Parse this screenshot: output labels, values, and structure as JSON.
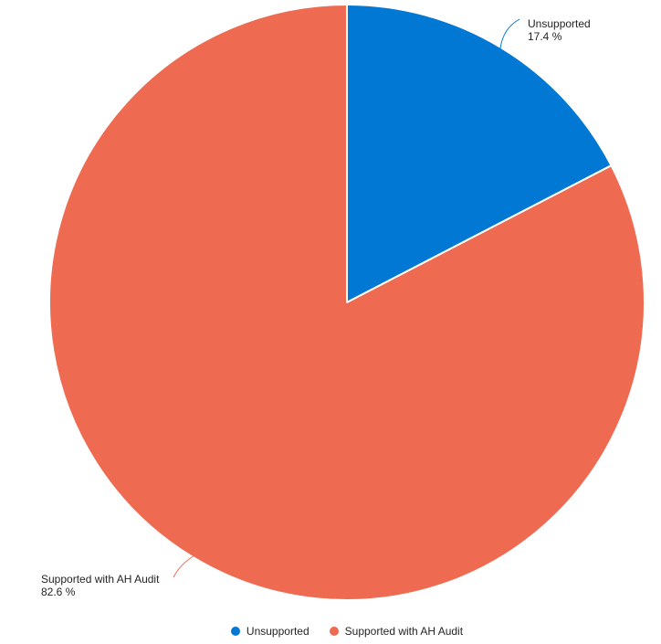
{
  "chart_data": {
    "type": "pie",
    "title": "",
    "slices": [
      {
        "label": "Unsupported",
        "value": 17.4,
        "pct_label": "17.4 %",
        "color": "#0078D4"
      },
      {
        "label": "Supported with AH Audit",
        "value": 82.6,
        "pct_label": "82.6 %",
        "color": "#EE6A51"
      }
    ],
    "total": 100,
    "start_angle_deg": 0,
    "direction": "clockwise",
    "detail_labels": "category + percent of total",
    "legend_position": "bottom-center",
    "background": "#FFFFFF",
    "text_color": "#252423",
    "slice_separator_color": "#FFFFFF"
  }
}
